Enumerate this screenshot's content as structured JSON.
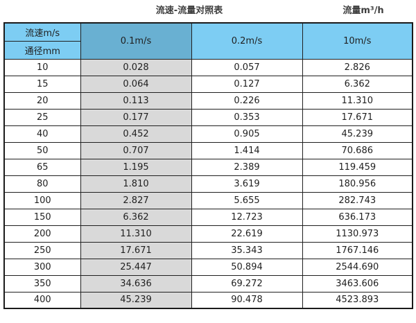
{
  "titles": {
    "left": "流速-流量对照表",
    "right": "流量m³/h"
  },
  "table": {
    "corner": {
      "top": "流速m/s",
      "bottom": "通径mm"
    },
    "velocity_columns": [
      "0.1m/s",
      "0.2m/s",
      "10m/s"
    ],
    "rows": [
      {
        "diameter": "10",
        "values": [
          "0.028",
          "0.057",
          "2.826"
        ]
      },
      {
        "diameter": "15",
        "values": [
          "0.064",
          "0.127",
          "6.362"
        ]
      },
      {
        "diameter": "20",
        "values": [
          "0.113",
          "0.226",
          "11.310"
        ]
      },
      {
        "diameter": "25",
        "values": [
          "0.177",
          "0.353",
          "17.671"
        ]
      },
      {
        "diameter": "40",
        "values": [
          "0.452",
          "0.905",
          "45.239"
        ]
      },
      {
        "diameter": "50",
        "values": [
          "0.707",
          "1.414",
          "70.686"
        ]
      },
      {
        "diameter": "65",
        "values": [
          "1.195",
          "2.389",
          "119.459"
        ]
      },
      {
        "diameter": "80",
        "values": [
          "1.810",
          "3.619",
          "180.956"
        ]
      },
      {
        "diameter": "100",
        "values": [
          "2.827",
          "5.655",
          "282.743"
        ]
      },
      {
        "diameter": "150",
        "values": [
          "6.362",
          "12.723",
          "636.173"
        ]
      },
      {
        "diameter": "200",
        "values": [
          "11.310",
          "22.619",
          "1130.973"
        ]
      },
      {
        "diameter": "250",
        "values": [
          "17.671",
          "35.343",
          "1767.146"
        ]
      },
      {
        "diameter": "300",
        "values": [
          "25.447",
          "50.894",
          "2544.690"
        ]
      },
      {
        "diameter": "350",
        "values": [
          "34.636",
          "69.272",
          "3463.606"
        ]
      },
      {
        "diameter": "400",
        "values": [
          "45.239",
          "90.478",
          "4523.893"
        ]
      }
    ]
  },
  "colors": {
    "header_blue": "#7dcdf3",
    "header_dark_blue": "#69b0d2",
    "shaded_column": "#d9d9d9",
    "border": "#1f1f1f"
  }
}
